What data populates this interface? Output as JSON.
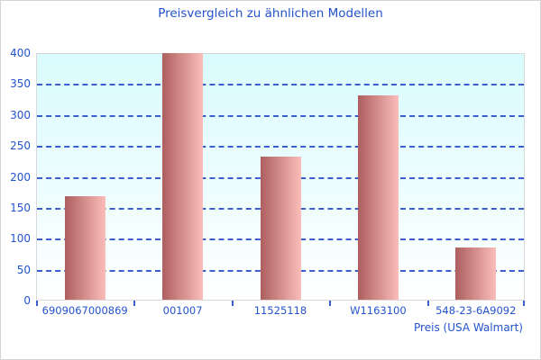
{
  "chart_data": {
    "type": "bar",
    "title": "Preisvergleich zu ähnlichen Modellen",
    "xlabel": "Preis (USA Walmart)",
    "ylabel": "",
    "categories": [
      "6909067000869",
      "001007",
      "11525118",
      "W1163100",
      "548-23-6A9092"
    ],
    "values": [
      167,
      399,
      232,
      330,
      84
    ],
    "ylim": [
      0,
      400
    ],
    "yticks": [
      0,
      50,
      100,
      150,
      200,
      250,
      300,
      350,
      400
    ],
    "grid": "horizontal-dashed",
    "legend": "none",
    "colors": {
      "text_blue": "#2353cc",
      "grid_blue": "#3c5ecc",
      "bar_gradient_left": "#ad5f5f",
      "bar_gradient_right": "#fbbdba",
      "plot_bg_top": "#d9fbfd",
      "plot_bg_bottom": "#ffffff",
      "plot_border": "#d9d9d9",
      "figure_border": "#d4d4d4",
      "figure_bg": "#ffffff"
    }
  }
}
